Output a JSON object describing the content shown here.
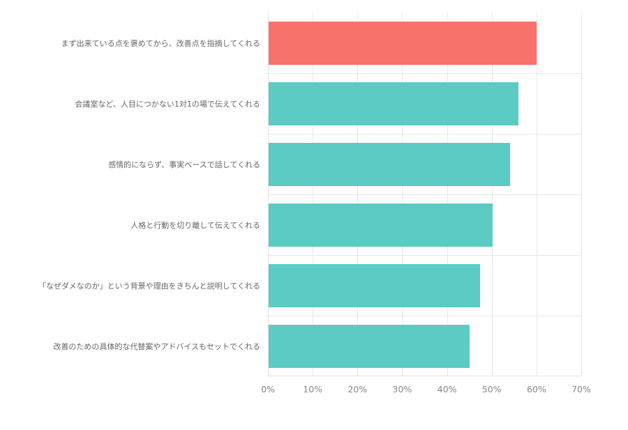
{
  "chart_data": {
    "type": "bar",
    "orientation": "horizontal",
    "title": "",
    "xlabel": "",
    "ylabel": "",
    "xlim": [
      0,
      70
    ],
    "grid": true,
    "legend": null,
    "categories": [
      "まず出来ている点を褒めてから、改善点を指摘してくれる",
      "会議室など、人目につかない1対1の場で伝えてくれる",
      "感情的にならず、事実ベースで話してくれる",
      "人格と行動を切り離して伝えてくれる",
      "「なぜダメなのか」という背景や理由をきちんと説明してくれる",
      "改善のための具体的な代替案やアドバイスもセットでくれる"
    ],
    "values": [
      59.8,
      55.8,
      54.0,
      50.0,
      47.2,
      44.9
    ],
    "colors": [
      "#f8716b",
      "#5ccbc3",
      "#5ccbc3",
      "#5ccbc3",
      "#5ccbc3",
      "#5ccbc3"
    ],
    "tick_labels": [
      "0%",
      "10%",
      "20%",
      "30%",
      "40%",
      "50%",
      "60%",
      "70%"
    ],
    "ticks": [
      0,
      10,
      20,
      30,
      40,
      50,
      60,
      70
    ]
  }
}
